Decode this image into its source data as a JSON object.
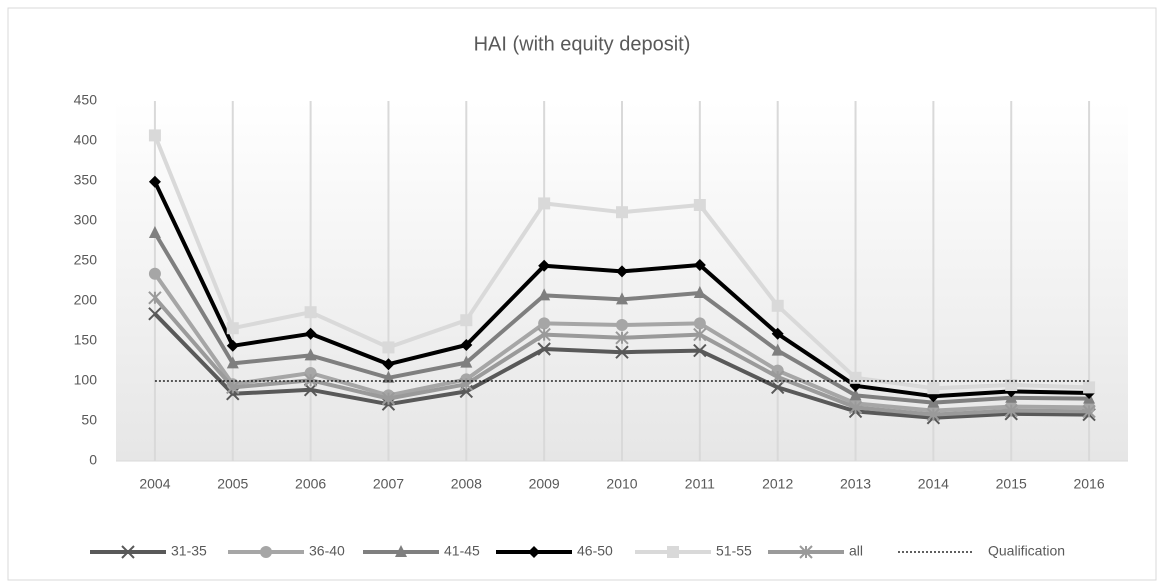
{
  "chart_data": {
    "type": "line",
    "title": "HAI (with equity deposit)",
    "categories": [
      "2004",
      "2005",
      "2006",
      "2007",
      "2008",
      "2009",
      "2010",
      "2011",
      "2012",
      "2013",
      "2014",
      "2015",
      "2016"
    ],
    "ylim": [
      0,
      450
    ],
    "yticks": [
      0,
      50,
      100,
      150,
      200,
      250,
      300,
      350,
      400,
      450
    ],
    "legend": "bottom",
    "series": [
      {
        "name": "31-35",
        "color": "#595959",
        "marker": "x",
        "values": [
          184,
          84,
          89,
          71,
          87,
          140,
          136,
          138,
          92,
          62,
          54,
          59,
          58
        ]
      },
      {
        "name": "36-40",
        "color": "#a6a6a6",
        "marker": "circle",
        "values": [
          234,
          96,
          110,
          82,
          102,
          172,
          170,
          172,
          113,
          72,
          63,
          68,
          67
        ]
      },
      {
        "name": "41-45",
        "color": "#7f7f7f",
        "marker": "triangle",
        "values": [
          285,
          122,
          132,
          104,
          123,
          207,
          202,
          210,
          138,
          82,
          73,
          79,
          78
        ]
      },
      {
        "name": "46-50",
        "color": "#000000",
        "marker": "diamond",
        "values": [
          349,
          144,
          159,
          121,
          145,
          244,
          237,
          245,
          159,
          94,
          81,
          87,
          85
        ]
      },
      {
        "name": "51-55",
        "color": "#d9d9d9",
        "marker": "square",
        "values": [
          407,
          166,
          186,
          142,
          176,
          322,
          311,
          320,
          194,
          104,
          91,
          95,
          92
        ]
      },
      {
        "name": "all",
        "color": "#9a9a9a",
        "marker": "star",
        "values": [
          204,
          92,
          101,
          78,
          96,
          158,
          154,
          158,
          105,
          67,
          58,
          63,
          62
        ]
      },
      {
        "name": "Qualification",
        "color": "#000000",
        "marker": "none",
        "dash": "dotted",
        "values": [
          100,
          100,
          100,
          100,
          100,
          100,
          100,
          100,
          100,
          100,
          100,
          100,
          100
        ]
      }
    ]
  }
}
